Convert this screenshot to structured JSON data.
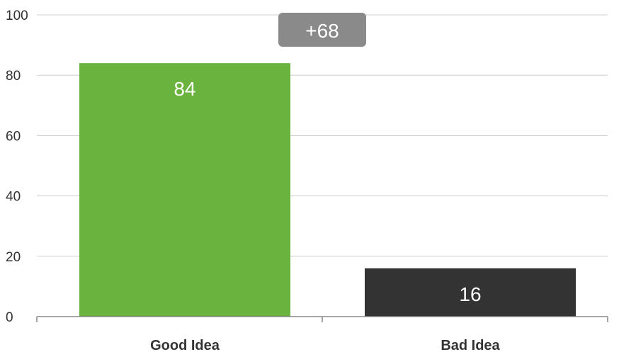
{
  "chart_data": {
    "type": "bar",
    "categories": [
      "Good Idea",
      "Bad Idea"
    ],
    "values": [
      84,
      16
    ],
    "bar_colors": [
      "#6bb33f",
      "#333333"
    ],
    "data_labels": [
      "84",
      "16"
    ],
    "annotation": {
      "text": "+68",
      "color": "#8a8a8a"
    },
    "ylim": [
      0,
      100
    ],
    "yticks": [
      0,
      20,
      40,
      60,
      80,
      100
    ],
    "ytick_labels": [
      "0",
      "20",
      "40",
      "60",
      "80",
      "100"
    ],
    "grid": true,
    "legend": "none"
  }
}
